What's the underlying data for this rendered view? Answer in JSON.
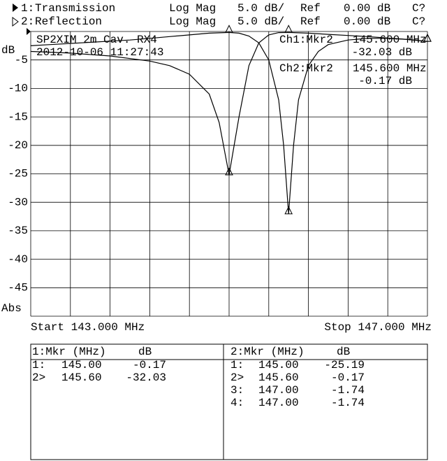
{
  "header": {
    "rows": [
      {
        "prefix": "1:",
        "format": "Log Mag",
        "scale": "5.0 dB/",
        "ref_label": "Ref",
        "ref": "0.00 dB",
        "cal": "C?"
      },
      {
        "prefix": "2:",
        "format": "Log Mag",
        "scale": "5.0 dB/",
        "ref_label": "Ref",
        "ref": "0.00 dB",
        "cal": "C?"
      }
    ]
  },
  "chart_data": {
    "type": "line",
    "y_label": "dB",
    "y_mode": "Abs",
    "start": "Start 143.000 MHz",
    "stop": "Stop 147.000 MHz",
    "annotations": [
      "SP2XIM 2m Cav. RX4",
      "2012-10-06 11:27:43"
    ],
    "marker_readouts": [
      {
        "channel": "Ch1:Mkr2",
        "freq": "145.600 MHz",
        "value": "-32.03 dB"
      },
      {
        "channel": "Ch2:Mkr2",
        "freq": "145.600 MHz",
        "value": "-0.17 dB"
      }
    ],
    "xlim": [
      143,
      147
    ],
    "xticks": [
      143,
      143.4,
      143.8,
      144.2,
      144.6,
      145,
      145.4,
      145.8,
      146.2,
      146.6,
      147
    ],
    "ylim": [
      -50,
      0
    ],
    "yticks": [
      -5,
      -10,
      -15,
      -20,
      -25,
      -30,
      -35,
      -40,
      -45
    ],
    "grid": true,
    "series": [
      {
        "name": "Transmission",
        "color": "#000000",
        "x": [
          143.0,
          143.2,
          143.4,
          143.6,
          143.8,
          144.0,
          144.2,
          144.4,
          144.6,
          144.8,
          145.0,
          145.1,
          145.2,
          145.3,
          145.4,
          145.5,
          145.55,
          145.6,
          145.65,
          145.7,
          145.8,
          145.9,
          146.0,
          146.2,
          146.4,
          146.6,
          146.8,
          147.0
        ],
        "values": [
          -2.5,
          -2.3,
          -2.1,
          -1.9,
          -1.7,
          -1.5,
          -1.2,
          -0.9,
          -0.6,
          -0.3,
          -0.17,
          -0.3,
          -0.8,
          -2,
          -5,
          -12,
          -20,
          -32.03,
          -20,
          -12,
          -6,
          -3.5,
          -2.3,
          -1.5,
          -1.2,
          -1.2,
          -1.4,
          -1.74
        ]
      },
      {
        "name": "Reflection",
        "color": "#000000",
        "x": [
          143.0,
          143.4,
          143.8,
          144.2,
          144.4,
          144.6,
          144.8,
          144.9,
          145.0,
          145.1,
          145.2,
          145.3,
          145.4,
          145.5,
          145.6,
          145.8,
          146.0,
          146.4,
          146.8,
          147.0
        ],
        "values": [
          -3.5,
          -3.8,
          -4.3,
          -5.2,
          -6,
          -7.5,
          -11,
          -16,
          -25.19,
          -15,
          -6,
          -2,
          -0.6,
          -0.2,
          -0.17,
          -0.3,
          -0.5,
          -0.9,
          -1.4,
          -1.74
        ]
      }
    ]
  },
  "tables": [
    {
      "header": [
        "1:Mkr (MHz)",
        "dB"
      ],
      "rows": [
        [
          "1:",
          "145.00",
          "-0.17"
        ],
        [
          "2>",
          "145.60",
          "-32.03"
        ]
      ]
    },
    {
      "header": [
        "2:Mkr (MHz)",
        "dB"
      ],
      "rows": [
        [
          "1:",
          "145.00",
          "-25.19"
        ],
        [
          "2>",
          "145.60",
          "-0.17"
        ],
        [
          "3:",
          "147.00",
          "-1.74"
        ],
        [
          "4:",
          "147.00",
          "-1.74"
        ]
      ]
    }
  ]
}
